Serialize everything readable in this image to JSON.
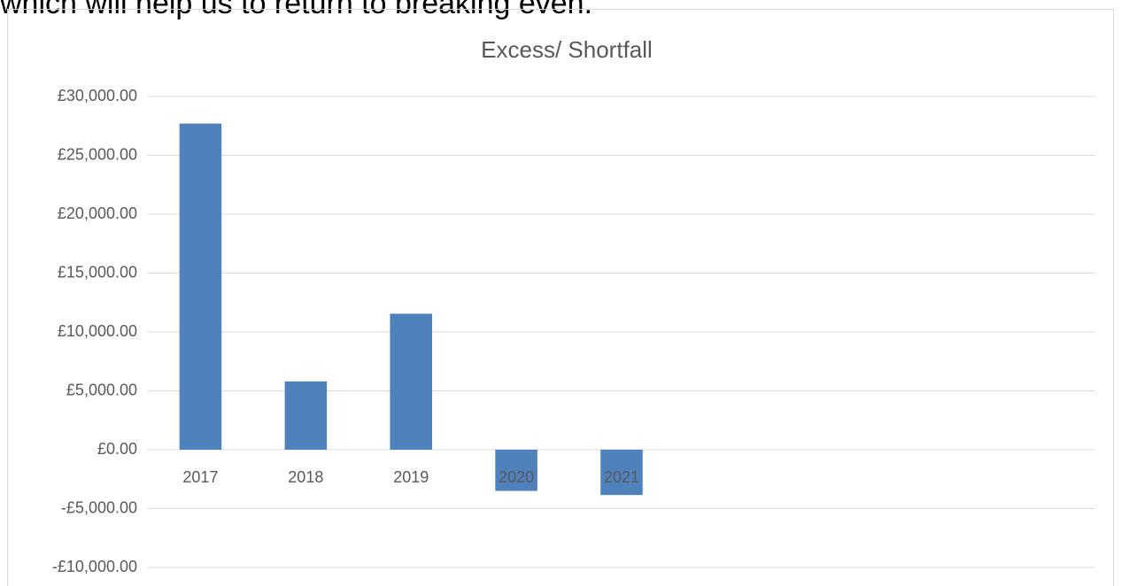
{
  "caption": "which will help us to return to breaking even.",
  "chart_data": {
    "type": "bar",
    "title": "Excess/ Shortfall",
    "categories": [
      "2017",
      "2018",
      "2019",
      "2020",
      "2021",
      null,
      null,
      null,
      null
    ],
    "values": [
      27700,
      5800,
      11550,
      -3500,
      -3850,
      null,
      null,
      null,
      null
    ],
    "color": "#4f81bd",
    "ylim": [
      -10000,
      30000
    ],
    "yticks": [
      {
        "value": -10000,
        "label": "-£10,000.00"
      },
      {
        "value": -5000,
        "label": "-£5,000.00"
      },
      {
        "value": 0,
        "label": "£0.00"
      },
      {
        "value": 5000,
        "label": "£5,000.00"
      },
      {
        "value": 10000,
        "label": "£10,000.00"
      },
      {
        "value": 15000,
        "label": "£15,000.00"
      },
      {
        "value": 20000,
        "label": "£20,000.00"
      },
      {
        "value": 25000,
        "label": "£25,000.00"
      },
      {
        "value": 30000,
        "label": "£30,000.00"
      }
    ],
    "grid": true
  }
}
